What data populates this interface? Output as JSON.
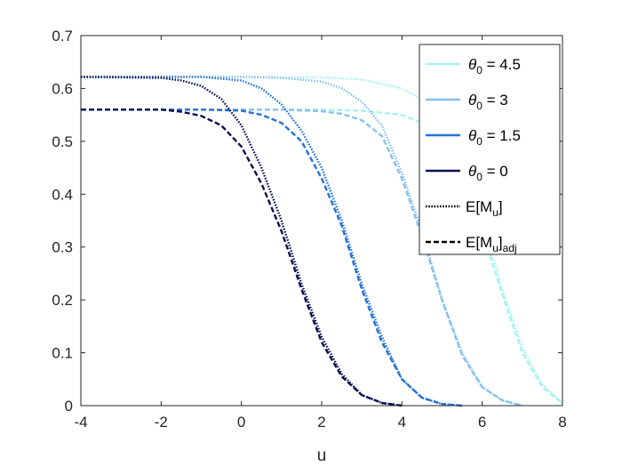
{
  "chart_data": {
    "type": "line",
    "title": "",
    "xlabel": "u",
    "ylabel": "",
    "xlim": [
      -4,
      8
    ],
    "ylim": [
      0,
      0.7
    ],
    "xticks": [
      "-4",
      "-2",
      "0",
      "2",
      "4",
      "6",
      "8"
    ],
    "yticks": [
      "0",
      "0.1",
      "0.2",
      "0.3",
      "0.4",
      "0.5",
      "0.6",
      "0.7"
    ],
    "grid": false,
    "legend_position": "top-right",
    "series": [
      {
        "name": "θ0 = 4.5",
        "legend": {
          "sym": "θ",
          "sub": "0",
          "rest": " = 4.5"
        },
        "color": "#a6f2f2",
        "style": "dotted",
        "x": [
          -4,
          0,
          2,
          3,
          4,
          4.5,
          5,
          5.5,
          6,
          6.5,
          7,
          7.5,
          8
        ],
        "y": [
          0.622,
          0.622,
          0.621,
          0.617,
          0.6,
          0.58,
          0.54,
          0.46,
          0.35,
          0.22,
          0.11,
          0.04,
          0.005
        ]
      },
      {
        "name": "θ0 = 4.5 adj",
        "color": "#a6f2f2",
        "style": "dashed",
        "x": [
          -4,
          0,
          2,
          3,
          4,
          4.5,
          5,
          5.5,
          6,
          6.5,
          7,
          7.5,
          8
        ],
        "y": [
          0.56,
          0.56,
          0.56,
          0.558,
          0.55,
          0.535,
          0.51,
          0.44,
          0.33,
          0.21,
          0.1,
          0.035,
          0.005
        ]
      },
      {
        "name": "θ0 = 3",
        "legend": {
          "sym": "θ",
          "sub": "0",
          "rest": " = 3"
        },
        "color": "#86c0f0",
        "style": "dotted",
        "x": [
          -4,
          0,
          1,
          2,
          2.5,
          3,
          3.5,
          4,
          4.5,
          5,
          5.5,
          6,
          6.5,
          7
        ],
        "y": [
          0.622,
          0.622,
          0.62,
          0.613,
          0.6,
          0.575,
          0.53,
          0.44,
          0.33,
          0.2,
          0.1,
          0.035,
          0.01,
          0.0
        ]
      },
      {
        "name": "θ0 = 3 adj",
        "color": "#86c0f0",
        "style": "dashed",
        "x": [
          -4,
          0,
          1,
          2,
          2.5,
          3,
          3.5,
          4,
          4.5,
          5,
          5.5,
          6,
          6.5,
          7
        ],
        "y": [
          0.56,
          0.56,
          0.56,
          0.557,
          0.552,
          0.54,
          0.51,
          0.43,
          0.32,
          0.2,
          0.095,
          0.035,
          0.01,
          0.0
        ]
      },
      {
        "name": "θ0 = 1.5",
        "legend": {
          "sym": "θ",
          "sub": "0",
          "rest": " = 1.5"
        },
        "color": "#2472d8",
        "style": "dotted",
        "x": [
          -4,
          -1,
          0,
          0.5,
          1,
          1.5,
          2,
          2.5,
          3,
          3.5,
          4,
          4.5,
          5,
          5.5
        ],
        "y": [
          0.622,
          0.622,
          0.615,
          0.6,
          0.57,
          0.52,
          0.45,
          0.35,
          0.23,
          0.13,
          0.05,
          0.015,
          0.003,
          0.0
        ]
      },
      {
        "name": "θ0 = 1.5 adj",
        "color": "#2472d8",
        "style": "dashed",
        "x": [
          -4,
          -1,
          0,
          0.5,
          1,
          1.5,
          2,
          2.5,
          3,
          3.5,
          4,
          4.5,
          5,
          5.5
        ],
        "y": [
          0.56,
          0.56,
          0.558,
          0.55,
          0.535,
          0.5,
          0.43,
          0.34,
          0.22,
          0.12,
          0.05,
          0.015,
          0.003,
          0.0
        ]
      },
      {
        "name": "θ0 = 0",
        "legend": {
          "sym": "θ",
          "sub": "0",
          "rest": " = 0"
        },
        "color": "#0a1050",
        "style": "dotted",
        "x": [
          -4,
          -2,
          -1.5,
          -1,
          -0.5,
          0,
          0.5,
          1,
          1.5,
          2,
          2.5,
          3,
          3.5,
          4
        ],
        "y": [
          0.622,
          0.62,
          0.615,
          0.605,
          0.58,
          0.53,
          0.45,
          0.35,
          0.23,
          0.13,
          0.06,
          0.02,
          0.005,
          0.0
        ]
      },
      {
        "name": "θ0 = 0 adj",
        "color": "#0a1050",
        "style": "dashed",
        "x": [
          -4,
          -2,
          -1.5,
          -1,
          -0.5,
          0,
          0.5,
          1,
          1.5,
          2,
          2.5,
          3,
          3.5,
          4
        ],
        "y": [
          0.56,
          0.56,
          0.556,
          0.548,
          0.53,
          0.49,
          0.42,
          0.33,
          0.22,
          0.12,
          0.055,
          0.02,
          0.005,
          0.0
        ]
      }
    ],
    "legend_extra": [
      {
        "main": "E[M",
        "sub": "u",
        "after": "]",
        "sub2": "",
        "style": "dotted"
      },
      {
        "main": "E[M",
        "sub": "u",
        "after": "]",
        "sub2": "adj",
        "style": "dashed"
      }
    ]
  }
}
